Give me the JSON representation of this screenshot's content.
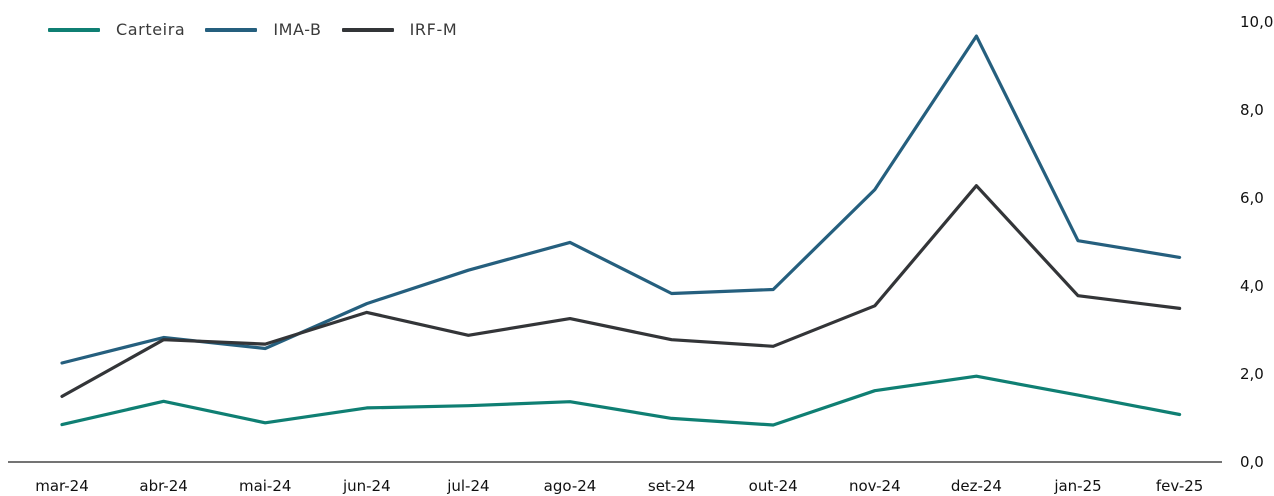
{
  "chart_data": {
    "type": "line",
    "categories": [
      "mar-24",
      "abr-24",
      "mai-24",
      "jun-24",
      "jul-24",
      "ago-24",
      "set-24",
      "out-24",
      "nov-24",
      "dez-24",
      "jan-25",
      "fev-25"
    ],
    "series": [
      {
        "name": "Carteira",
        "color": "#0f7f73",
        "values": [
          0.85,
          1.38,
          0.89,
          1.23,
          1.28,
          1.37,
          0.99,
          0.84,
          1.62,
          1.95,
          1.52,
          1.08
        ]
      },
      {
        "name": "IMA-B",
        "color": "#255f7e",
        "values": [
          2.25,
          2.83,
          2.58,
          3.6,
          4.36,
          4.99,
          3.83,
          3.92,
          6.19,
          9.68,
          5.03,
          4.65
        ]
      },
      {
        "name": "IRF-M",
        "color": "#333538",
        "values": [
          1.49,
          2.78,
          2.68,
          3.4,
          2.88,
          3.26,
          2.78,
          2.63,
          3.55,
          6.28,
          3.78,
          3.49
        ]
      }
    ],
    "y_ticks": [
      "0,0",
      "2,0",
      "4,0",
      "6,0",
      "8,0",
      "10,0"
    ],
    "ylim": [
      0,
      10
    ],
    "y_axis_side": "right",
    "legend_position": "top-left",
    "grid": false
  }
}
